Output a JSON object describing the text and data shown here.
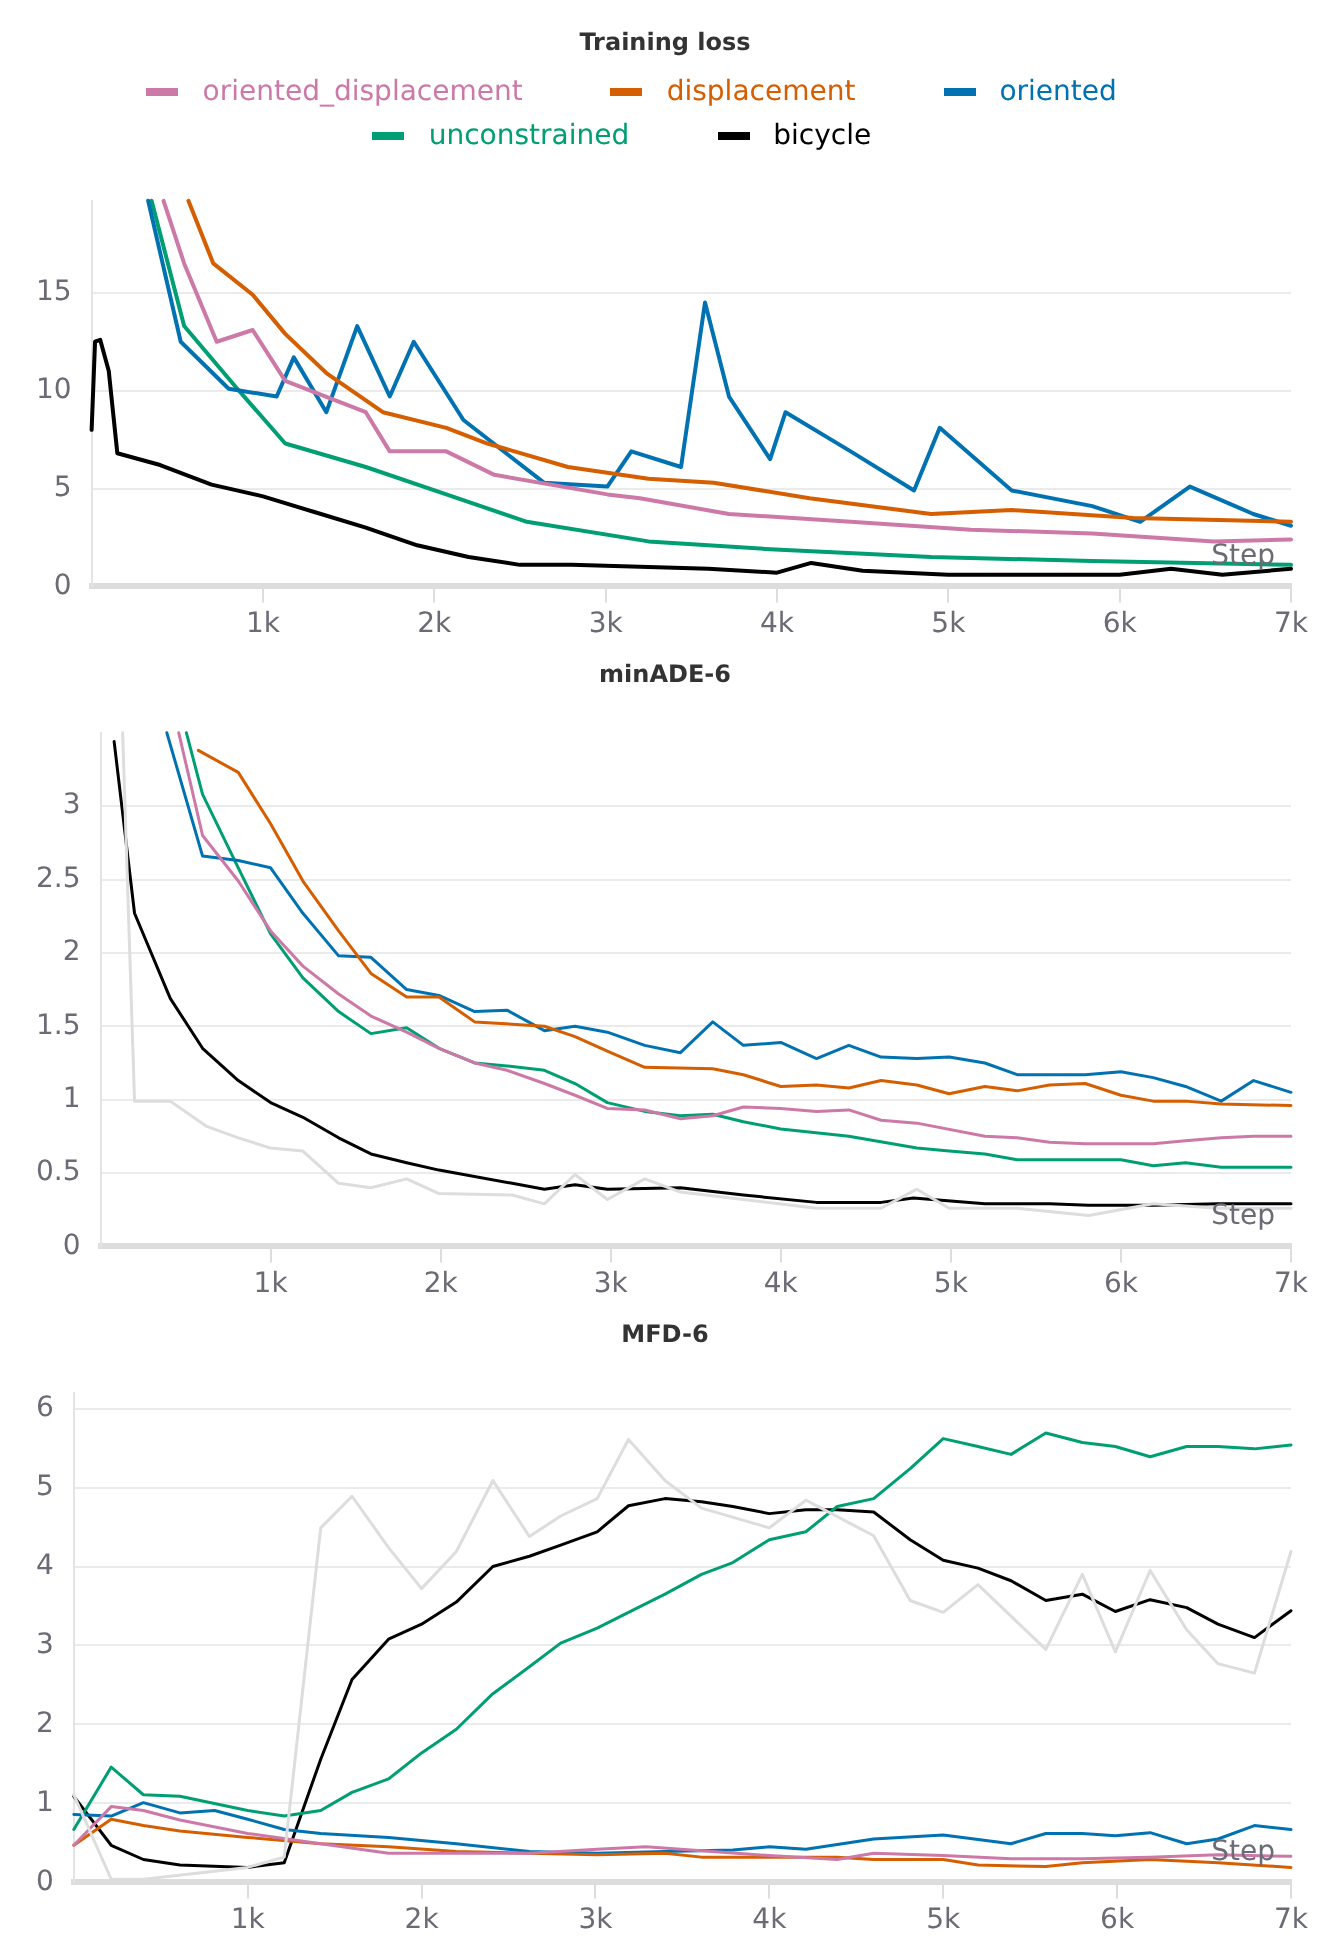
{
  "chart_data": [
    {
      "type": "line",
      "title": "Training loss",
      "xlabel": "Step",
      "legend": "top",
      "grid": "y",
      "xlim": [
        0,
        7000
      ],
      "ylim": [
        0,
        19.7
      ],
      "yticks": [
        0,
        5,
        10,
        15
      ],
      "xticks": [
        {
          "value": 1000,
          "label": "1k"
        },
        {
          "value": 2000,
          "label": "2k"
        },
        {
          "value": 3000,
          "label": "3k"
        },
        {
          "value": 4000,
          "label": "4k"
        },
        {
          "value": 5000,
          "label": "5k"
        },
        {
          "value": 6000,
          "label": "6k"
        },
        {
          "value": 7000,
          "label": "7k"
        }
      ],
      "series": [
        {
          "name": "oriented_displacement",
          "color": "#cc79a7",
          "x": [
            420,
            540,
            730,
            940,
            1130,
            1600,
            1740,
            2070,
            2350,
            3010,
            3200,
            3720,
            4430,
            5130,
            5840,
            6550,
            7000
          ],
          "values": [
            19.7,
            16.5,
            12.5,
            13.1,
            10.5,
            8.9,
            6.9,
            6.9,
            5.7,
            4.7,
            4.5,
            3.7,
            3.3,
            2.9,
            2.7,
            2.3,
            2.4
          ]
        },
        {
          "name": "displacement",
          "color": "#d55e00",
          "x": [
            565,
            710,
            940,
            1130,
            1370,
            1700,
            2070,
            2310,
            2780,
            3250,
            3630,
            4190,
            4900,
            5370,
            6080,
            7000
          ],
          "values": [
            19.7,
            16.5,
            14.9,
            12.9,
            10.9,
            8.9,
            8.1,
            7.3,
            6.1,
            5.5,
            5.3,
            4.5,
            3.7,
            3.9,
            3.5,
            3.3
          ]
        },
        {
          "name": "oriented",
          "color": "#0072b2",
          "x": [
            330,
            520,
            800,
            1080,
            1180,
            1370,
            1550,
            1740,
            1880,
            2170,
            2640,
            3010,
            3150,
            3440,
            3580,
            3720,
            3960,
            4050,
            4430,
            4800,
            4950,
            5370,
            5840,
            6120,
            6410,
            6780,
            7000
          ],
          "values": [
            19.7,
            12.5,
            10.1,
            9.7,
            11.7,
            8.9,
            13.3,
            9.7,
            12.5,
            8.5,
            5.3,
            5.1,
            6.9,
            6.1,
            14.5,
            9.7,
            6.5,
            8.9,
            6.9,
            4.9,
            8.1,
            4.9,
            4.1,
            3.3,
            5.1,
            3.7,
            3.1
          ]
        },
        {
          "name": "unconstrained",
          "color": "#009e73",
          "x": [
            350,
            540,
            850,
            1130,
            1600,
            2070,
            2540,
            3250,
            3960,
            4900,
            5840,
            7000
          ],
          "values": [
            19.7,
            13.3,
            10.1,
            7.3,
            6.1,
            4.7,
            3.3,
            2.3,
            1.9,
            1.5,
            1.3,
            1.1
          ]
        },
        {
          "name": "bicycle",
          "color": "#000000",
          "x": [
            0,
            20,
            50,
            100,
            150,
            400,
            700,
            1000,
            1300,
            1600,
            1900,
            2200,
            2500,
            2800,
            3200,
            3600,
            4000,
            4200,
            4500,
            5000,
            5500,
            6000,
            6300,
            6600,
            7000
          ],
          "values": [
            8,
            12.5,
            12.6,
            11,
            6.8,
            6.2,
            5.2,
            4.6,
            3.8,
            3.0,
            2.1,
            1.5,
            1.1,
            1.1,
            1.0,
            0.9,
            0.7,
            1.2,
            0.8,
            0.6,
            0.6,
            0.6,
            0.9,
            0.6,
            0.9
          ]
        }
      ]
    },
    {
      "type": "line",
      "title": "minADE-6",
      "xlabel": "Step",
      "legend": false,
      "grid": "y",
      "xlim": [
        0,
        7000
      ],
      "ylim": [
        0,
        3.5
      ],
      "yticks": [
        0,
        0.5,
        1,
        1.5,
        2,
        2.5,
        3
      ],
      "xticks": [
        {
          "value": 1000,
          "label": "1k"
        },
        {
          "value": 2000,
          "label": "2k"
        },
        {
          "value": 3000,
          "label": "3k"
        },
        {
          "value": 4000,
          "label": "4k"
        },
        {
          "value": 5000,
          "label": "5k"
        },
        {
          "value": 6000,
          "label": "6k"
        },
        {
          "value": 7000,
          "label": "7k"
        }
      ],
      "series": [
        {
          "color": "#dddddd",
          "x": [
            130,
            200,
            410,
            620,
            810,
            1000,
            1190,
            1400,
            1590,
            1800,
            1990,
            2420,
            2610,
            2790,
            2980,
            3200,
            3410,
            3780,
            4210,
            4590,
            4800,
            4990,
            5390,
            5810,
            6190,
            6570,
            7000
          ],
          "values": [
            3.5,
            0.99,
            0.99,
            0.82,
            0.74,
            0.67,
            0.65,
            0.43,
            0.4,
            0.46,
            0.36,
            0.35,
            0.29,
            0.49,
            0.32,
            0.46,
            0.37,
            0.32,
            0.26,
            0.26,
            0.39,
            0.26,
            0.26,
            0.21,
            0.29,
            0.26,
            0.26
          ]
        },
        {
          "color": "#cc79a7",
          "x": [
            460,
            600,
            810,
            1000,
            1190,
            1400,
            1590,
            1800,
            1990,
            2200,
            2390,
            2610,
            2790,
            2980,
            3200,
            3410,
            3600,
            3780,
            4000,
            4210,
            4400,
            4590,
            4800,
            5200,
            5390,
            5580,
            5790,
            6190,
            6380,
            6590,
            6780,
            7000
          ],
          "values": [
            3.5,
            2.8,
            2.49,
            2.15,
            1.91,
            1.72,
            1.57,
            1.46,
            1.35,
            1.25,
            1.2,
            1.11,
            1.03,
            0.94,
            0.93,
            0.87,
            0.89,
            0.95,
            0.94,
            0.92,
            0.93,
            0.86,
            0.84,
            0.75,
            0.74,
            0.71,
            0.7,
            0.7,
            0.72,
            0.74,
            0.75,
            0.75
          ]
        },
        {
          "color": "#d55e00",
          "x": [
            575,
            810,
            1000,
            1190,
            1400,
            1590,
            1800,
            1990,
            2200,
            2610,
            2790,
            2980,
            3200,
            3600,
            3780,
            4000,
            4210,
            4400,
            4590,
            4800,
            4990,
            5200,
            5390,
            5580,
            5790,
            6000,
            6190,
            6380,
            6590,
            7000
          ],
          "values": [
            3.38,
            3.23,
            2.88,
            2.49,
            2.15,
            1.86,
            1.7,
            1.7,
            1.53,
            1.5,
            1.43,
            1.33,
            1.22,
            1.21,
            1.17,
            1.09,
            1.1,
            1.08,
            1.13,
            1.1,
            1.04,
            1.09,
            1.06,
            1.1,
            1.11,
            1.03,
            0.99,
            0.99,
            0.97,
            0.96
          ]
        },
        {
          "color": "#0072b2",
          "x": [
            390,
            600,
            810,
            1000,
            1190,
            1400,
            1590,
            1800,
            1990,
            2200,
            2390,
            2610,
            2790,
            2980,
            3200,
            3410,
            3600,
            3780,
            4000,
            4210,
            4400,
            4590,
            4800,
            4990,
            5200,
            5390,
            5790,
            6000,
            6190,
            6380,
            6590,
            6780,
            7000
          ],
          "values": [
            3.5,
            2.66,
            2.63,
            2.58,
            2.27,
            1.98,
            1.97,
            1.75,
            1.71,
            1.6,
            1.61,
            1.47,
            1.5,
            1.46,
            1.37,
            1.32,
            1.53,
            1.37,
            1.39,
            1.28,
            1.37,
            1.29,
            1.28,
            1.29,
            1.25,
            1.17,
            1.17,
            1.19,
            1.15,
            1.09,
            0.99,
            1.13,
            1.05
          ]
        },
        {
          "color": "#009e73",
          "x": [
            505,
            600,
            810,
            1000,
            1190,
            1400,
            1590,
            1800,
            1990,
            2200,
            2390,
            2610,
            2790,
            2980,
            3200,
            3410,
            3600,
            3780,
            4000,
            4400,
            4800,
            4990,
            5200,
            5390,
            5790,
            6000,
            6190,
            6380,
            6590,
            7000
          ],
          "values": [
            3.5,
            3.08,
            2.58,
            2.13,
            1.83,
            1.6,
            1.45,
            1.49,
            1.35,
            1.25,
            1.23,
            1.2,
            1.11,
            0.98,
            0.92,
            0.89,
            0.9,
            0.85,
            0.8,
            0.75,
            0.67,
            0.65,
            0.63,
            0.59,
            0.59,
            0.59,
            0.55,
            0.57,
            0.54,
            0.54
          ]
        },
        {
          "color": "#000000",
          "x": [
            80,
            200,
            410,
            600,
            810,
            1000,
            1190,
            1400,
            1590,
            1800,
            1990,
            2420,
            2610,
            2790,
            2980,
            3410,
            3780,
            4210,
            4590,
            4780,
            5200,
            5580,
            5810,
            6190,
            6570,
            7000
          ],
          "values": [
            3.44,
            2.27,
            1.69,
            1.35,
            1.13,
            0.98,
            0.88,
            0.74,
            0.63,
            0.57,
            0.52,
            0.43,
            0.39,
            0.42,
            0.39,
            0.4,
            0.35,
            0.3,
            0.3,
            0.33,
            0.29,
            0.29,
            0.28,
            0.28,
            0.29,
            0.29
          ]
        }
      ]
    },
    {
      "type": "line",
      "title": "MFD-6",
      "xlabel": "Step",
      "legend": false,
      "grid": "y",
      "xlim": [
        0,
        7000
      ],
      "ylim": [
        0,
        6.2
      ],
      "yticks": [
        0,
        1,
        2,
        3,
        4,
        5,
        6
      ],
      "xticks": [
        {
          "value": 1000,
          "label": "1k"
        },
        {
          "value": 2000,
          "label": "2k"
        },
        {
          "value": 3000,
          "label": "3k"
        },
        {
          "value": 4000,
          "label": "4k"
        },
        {
          "value": 5000,
          "label": "5k"
        },
        {
          "value": 6000,
          "label": "6k"
        },
        {
          "value": 7000,
          "label": "7k"
        }
      ],
      "series": [
        {
          "color": "#dddddd",
          "x": [
            0,
            215,
            400,
            1000,
            1210,
            1420,
            1600,
            1810,
            2000,
            2200,
            2410,
            2620,
            2800,
            3010,
            3190,
            3400,
            3610,
            4000,
            4210,
            4600,
            4810,
            5000,
            5200,
            5590,
            5800,
            5990,
            6190,
            6400,
            6580,
            6790,
            7000
          ],
          "values": [
            1.11,
            0.04,
            0.04,
            0.19,
            0.32,
            4.49,
            4.89,
            4.24,
            3.72,
            4.19,
            5.09,
            4.38,
            4.64,
            4.86,
            5.61,
            5.09,
            4.74,
            4.49,
            4.84,
            4.39,
            3.57,
            3.42,
            3.77,
            2.95,
            3.9,
            2.92,
            3.95,
            3.2,
            2.77,
            2.65,
            4.19
          ]
        },
        {
          "color": "#cc79a7",
          "x": [
            0,
            215,
            400,
            610,
            1000,
            1420,
            1810,
            2200,
            2620,
            3010,
            3290,
            3610,
            4000,
            4390,
            4600,
            5000,
            5390,
            5800,
            6190,
            6580,
            7000
          ],
          "values": [
            0.47,
            0.96,
            0.91,
            0.79,
            0.62,
            0.49,
            0.37,
            0.37,
            0.37,
            0.42,
            0.45,
            0.4,
            0.34,
            0.29,
            0.37,
            0.34,
            0.3,
            0.3,
            0.32,
            0.35,
            0.33
          ]
        },
        {
          "color": "#d55e00",
          "x": [
            0,
            215,
            400,
            610,
            1000,
            1420,
            1810,
            2200,
            2620,
            3010,
            3400,
            3610,
            4000,
            4390,
            4600,
            5000,
            5200,
            5590,
            5800,
            6190,
            6580,
            7000
          ],
          "values": [
            0.47,
            0.8,
            0.72,
            0.65,
            0.57,
            0.49,
            0.45,
            0.39,
            0.37,
            0.35,
            0.37,
            0.32,
            0.32,
            0.32,
            0.29,
            0.29,
            0.22,
            0.2,
            0.25,
            0.29,
            0.25,
            0.19
          ]
        },
        {
          "color": "#0072b2",
          "x": [
            0,
            215,
            400,
            610,
            810,
            1000,
            1210,
            1420,
            1810,
            2200,
            2620,
            3010,
            3400,
            3790,
            4000,
            4210,
            4600,
            5000,
            5390,
            5590,
            5800,
            5990,
            6190,
            6400,
            6580,
            6790,
            7000
          ],
          "values": [
            0.86,
            0.84,
            1.01,
            0.88,
            0.91,
            0.8,
            0.67,
            0.62,
            0.57,
            0.49,
            0.39,
            0.37,
            0.39,
            0.41,
            0.45,
            0.42,
            0.55,
            0.6,
            0.49,
            0.62,
            0.62,
            0.59,
            0.63,
            0.49,
            0.55,
            0.72,
            0.67
          ]
        },
        {
          "color": "#009e73",
          "x": [
            0,
            215,
            400,
            610,
            1000,
            1210,
            1420,
            1600,
            1810,
            2000,
            2200,
            2410,
            2620,
            2800,
            3010,
            3190,
            3400,
            3610,
            3790,
            4000,
            4210,
            4390,
            4600,
            4810,
            5000,
            5200,
            5390,
            5590,
            5800,
            5990,
            6190,
            6400,
            6580,
            6790,
            7000
          ],
          "values": [
            0.67,
            1.46,
            1.11,
            1.09,
            0.91,
            0.84,
            0.91,
            1.14,
            1.31,
            1.64,
            1.94,
            2.39,
            2.73,
            3.03,
            3.22,
            3.42,
            3.65,
            3.9,
            4.05,
            4.34,
            4.44,
            4.76,
            4.86,
            5.24,
            5.62,
            5.52,
            5.42,
            5.69,
            5.57,
            5.52,
            5.39,
            5.52,
            5.52,
            5.49,
            5.54
          ]
        },
        {
          "color": "#000000",
          "x": [
            0,
            215,
            400,
            610,
            1000,
            1210,
            1420,
            1600,
            1810,
            2000,
            2200,
            2410,
            2620,
            2800,
            3010,
            3190,
            3400,
            3610,
            3790,
            4000,
            4210,
            4390,
            4600,
            4810,
            5000,
            5200,
            5390,
            5590,
            5800,
            5990,
            6190,
            6400,
            6580,
            6790,
            7000
          ],
          "values": [
            1.09,
            0.47,
            0.29,
            0.22,
            0.19,
            0.25,
            1.56,
            2.57,
            3.08,
            3.27,
            3.55,
            4.0,
            4.13,
            4.27,
            4.44,
            4.77,
            4.86,
            4.82,
            4.76,
            4.67,
            4.72,
            4.72,
            4.69,
            4.34,
            4.08,
            3.98,
            3.82,
            3.57,
            3.65,
            3.43,
            3.58,
            3.48,
            3.27,
            3.1,
            3.44
          ]
        }
      ]
    }
  ]
}
